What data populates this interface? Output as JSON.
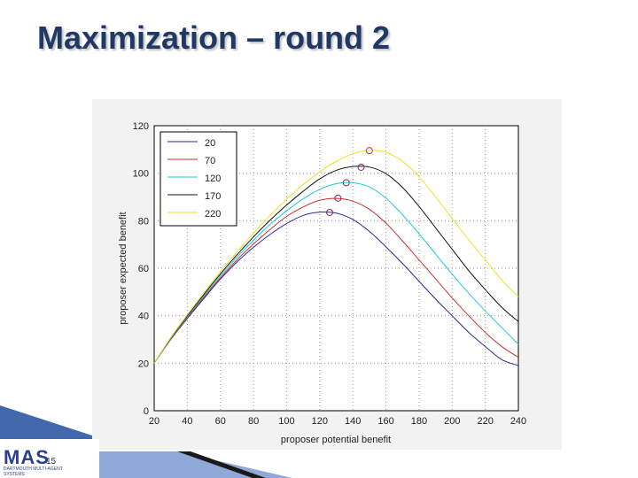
{
  "slide": {
    "title": "Maximization – round 2",
    "page_number": "15"
  },
  "logo": {
    "mark": "MAS",
    "subtitle": "DARTMOUTH MULTI-AGENT SYSTEMS"
  },
  "colors": {
    "title": "#1f3864",
    "panel_bg": "#f2f2f2",
    "footer_blue": "#1f4e9c"
  },
  "chart_data": {
    "type": "line",
    "xlabel": "proposer potential benefit",
    "ylabel": "proposer expected benefit",
    "xlim": [
      20,
      240
    ],
    "ylim": [
      0,
      120
    ],
    "xticks": [
      20,
      40,
      60,
      80,
      100,
      120,
      140,
      160,
      180,
      200,
      220,
      240
    ],
    "yticks": [
      0,
      20,
      40,
      60,
      80,
      100,
      120
    ],
    "grid": true,
    "legend_position": "top-left",
    "x": [
      20,
      30,
      40,
      50,
      60,
      70,
      80,
      90,
      100,
      110,
      120,
      130,
      140,
      150,
      160,
      170,
      180,
      190,
      200,
      210,
      220,
      230,
      240
    ],
    "series": [
      {
        "name": "20",
        "color": "#2b2b9c",
        "values": [
          20,
          30,
          38.8,
          47.2,
          55.4,
          62.6,
          68.8,
          74.2,
          78.8,
          82.2,
          83.6,
          83.2,
          80.5,
          75.5,
          69,
          62,
          54.5,
          47,
          40,
          33,
          27,
          21.5,
          19
        ],
        "max_point": [
          126,
          83.5
        ]
      },
      {
        "name": "70",
        "color": "#c8322d",
        "values": [
          20,
          30.2,
          39.2,
          47.8,
          56,
          63.5,
          70.2,
          76.3,
          81.8,
          85.8,
          88.6,
          89.4,
          88.2,
          84.8,
          79,
          71.5,
          63.5,
          55.5,
          47.5,
          40,
          33,
          27,
          22.5
        ],
        "max_point": [
          131,
          89.5
        ]
      },
      {
        "name": "120",
        "color": "#22c9d8",
        "values": [
          20,
          30.4,
          39.6,
          48.4,
          56.8,
          64.6,
          71.8,
          78.4,
          84.2,
          89.2,
          93.2,
          95.6,
          96,
          94.2,
          89.5,
          82.5,
          74.5,
          66,
          57.5,
          49.5,
          42,
          35,
          28
        ],
        "max_point": [
          136,
          96
        ]
      },
      {
        "name": "170",
        "color": "#141414",
        "values": [
          20,
          30.6,
          40,
          49,
          57.6,
          65.6,
          73.2,
          80.2,
          86.6,
          92.4,
          97.6,
          101.2,
          102.8,
          102.6,
          99.8,
          94,
          86,
          77,
          68,
          59,
          51,
          43.5,
          37.5
        ],
        "max_point": [
          145,
          102.5
        ]
      },
      {
        "name": "220",
        "color": "#f0e020",
        "values": [
          20,
          30.8,
          40.4,
          49.6,
          58.4,
          66.8,
          74.8,
          82.2,
          89,
          95.2,
          100.6,
          105,
          108.2,
          109.6,
          108.8,
          105,
          98.5,
          90,
          81,
          72,
          63.5,
          55,
          48
        ],
        "max_point": [
          150,
          109.5
        ]
      }
    ]
  }
}
